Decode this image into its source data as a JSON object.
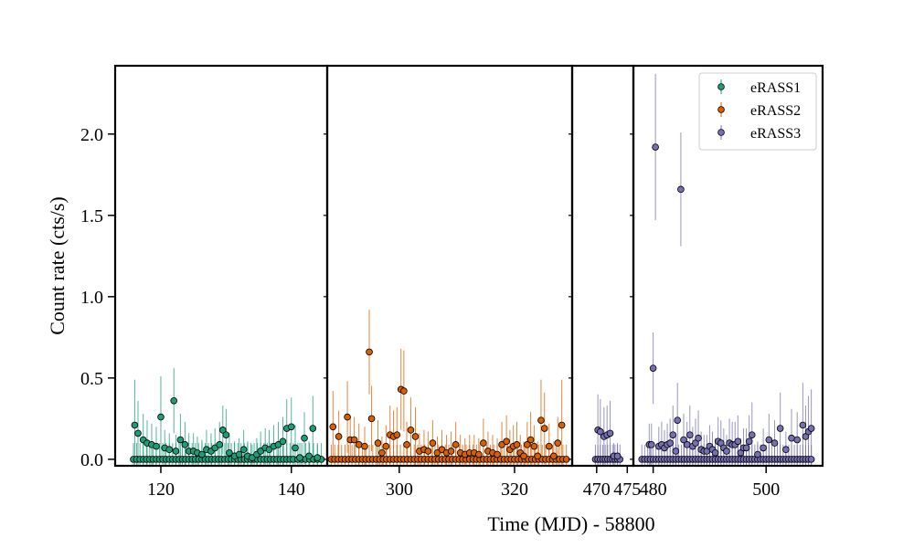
{
  "chart_data": {
    "type": "scatter",
    "xlabel": "Time (MJD) - 58800",
    "ylabel": "Count rate (cts/s)",
    "ylim": [
      -0.04,
      2.42
    ],
    "y_ticks": [
      0.0,
      0.5,
      1.0,
      1.5,
      2.0
    ],
    "y_tick_labels": [
      "0.0",
      "0.5",
      "1.0",
      "1.5",
      "2.0"
    ],
    "legend_position": "top-right",
    "panels": [
      {
        "xlim": [
          113.0,
          145.5
        ],
        "x_ticks": [
          120,
          140
        ],
        "x_tick_labels": [
          "120",
          "140"
        ]
      },
      {
        "xlim": [
          287.5,
          330.0
        ],
        "x_ticks": [
          300,
          320
        ],
        "x_tick_labels": [
          "300",
          "320"
        ]
      },
      {
        "xlim": [
          466.0,
          476.0
        ],
        "x_ticks": [
          470,
          475
        ],
        "x_tick_labels": [
          "470",
          "475"
        ]
      },
      {
        "xlim": [
          476.5,
          510.0
        ],
        "x_ticks": [
          480,
          500
        ],
        "x_tick_labels": [
          "480",
          "500"
        ]
      }
    ],
    "series": [
      {
        "name": "eRASS1",
        "color": "#1b9e77",
        "x": [
          116.0,
          116.5,
          117.3,
          117.9,
          118.6,
          119.3,
          120.0,
          120.6,
          121.3,
          122.0,
          122.3,
          123.0,
          123.7,
          124.3,
          125.0,
          125.6,
          126.3,
          127.0,
          127.7,
          128.3,
          129.0,
          129.5,
          130.0,
          130.5,
          131.3,
          132.0,
          132.7,
          133.3,
          134.0,
          134.7,
          135.3,
          136.0,
          136.6,
          137.3,
          138.0,
          138.7,
          139.3,
          140.0,
          140.6,
          141.3,
          142.0,
          142.7,
          143.3,
          144.0
        ],
        "y": [
          0.21,
          0.16,
          0.12,
          0.1,
          0.09,
          0.08,
          0.26,
          0.07,
          0.06,
          0.36,
          0.05,
          0.12,
          0.09,
          0.05,
          0.05,
          0.04,
          0.03,
          0.06,
          0.05,
          0.07,
          0.09,
          0.18,
          0.15,
          0.04,
          0.02,
          0.03,
          0.06,
          0.02,
          0.01,
          0.03,
          0.05,
          0.07,
          0.06,
          0.08,
          0.09,
          0.11,
          0.19,
          0.2,
          0.07,
          0.01,
          0.13,
          0.02,
          0.19,
          0.01
        ],
        "yerr": [
          0.28,
          0.2,
          0.16,
          0.14,
          0.13,
          0.12,
          0.25,
          0.11,
          0.1,
          0.2,
          0.1,
          0.16,
          0.14,
          0.11,
          0.11,
          0.1,
          0.09,
          0.12,
          0.11,
          0.12,
          0.14,
          0.15,
          0.16,
          0.12,
          0.09,
          0.1,
          0.12,
          0.09,
          0.08,
          0.1,
          0.12,
          0.12,
          0.12,
          0.13,
          0.14,
          0.15,
          0.18,
          0.18,
          0.14,
          0.09,
          0.16,
          0.09,
          0.2,
          0.08
        ],
        "zeros_x": [
          115.8,
          116.3,
          116.8,
          117.3,
          117.8,
          118.3,
          118.8,
          119.3,
          119.8,
          120.3,
          120.8,
          121.3,
          121.8,
          122.3,
          122.8,
          123.3,
          123.8,
          124.3,
          124.8,
          125.3,
          125.8,
          126.3,
          126.8,
          127.3,
          127.8,
          128.3,
          128.8,
          129.3,
          129.8,
          130.3,
          130.8,
          131.3,
          131.8,
          132.3,
          132.8,
          133.3,
          133.8,
          134.3,
          134.8,
          135.3,
          135.8,
          136.3,
          136.8,
          137.3,
          137.8,
          138.3,
          138.8,
          139.3,
          139.8,
          140.3,
          141.0,
          141.6,
          142.2,
          142.8,
          143.4,
          144.0,
          144.6
        ],
        "zeros_err": 0.1
      },
      {
        "name": "eRASS2",
        "color": "#d95f02",
        "x": [
          288.5,
          289.5,
          291.0,
          291.5,
          292.2,
          293.0,
          294.0,
          294.8,
          295.2,
          296.3,
          297.0,
          297.7,
          298.4,
          299.0,
          299.6,
          300.3,
          300.8,
          301.3,
          302.0,
          302.8,
          303.5,
          304.3,
          305.0,
          305.8,
          306.6,
          307.4,
          308.2,
          309.0,
          309.8,
          310.6,
          311.4,
          312.2,
          313.0,
          313.8,
          314.6,
          315.4,
          316.2,
          317.0,
          317.8,
          318.6,
          319.2,
          319.8,
          320.4,
          321.0,
          321.6,
          322.2,
          322.8,
          323.4,
          324.0,
          324.6,
          325.2,
          326.0,
          326.8,
          327.5,
          328.2
        ],
        "y": [
          0.2,
          0.14,
          0.26,
          0.12,
          0.12,
          0.09,
          0.08,
          0.66,
          0.25,
          0.1,
          0.04,
          0.08,
          0.15,
          0.14,
          0.15,
          0.43,
          0.42,
          0.09,
          0.18,
          0.14,
          0.05,
          0.06,
          0.05,
          0.1,
          0.04,
          0.06,
          0.04,
          0.05,
          0.09,
          0.04,
          0.03,
          0.04,
          0.04,
          0.03,
          0.1,
          0.05,
          0.04,
          0.03,
          0.09,
          0.11,
          0.06,
          0.08,
          0.09,
          0.04,
          0.02,
          0.09,
          0.12,
          0.08,
          0.02,
          0.24,
          0.19,
          0.08,
          0.02,
          0.1,
          0.21
        ],
        "yerr": [
          0.22,
          0.16,
          0.22,
          0.14,
          0.14,
          0.13,
          0.12,
          0.26,
          0.2,
          0.14,
          0.1,
          0.13,
          0.18,
          0.16,
          0.17,
          0.25,
          0.25,
          0.14,
          0.2,
          0.18,
          0.11,
          0.12,
          0.12,
          0.14,
          0.1,
          0.12,
          0.11,
          0.12,
          0.14,
          0.11,
          0.1,
          0.11,
          0.11,
          0.1,
          0.15,
          0.12,
          0.11,
          0.1,
          0.14,
          0.16,
          0.12,
          0.13,
          0.14,
          0.11,
          0.09,
          0.14,
          0.17,
          0.13,
          0.09,
          0.25,
          0.22,
          0.14,
          0.09,
          0.16,
          0.28
        ],
        "zeros_x": [
          288.2,
          288.8,
          289.4,
          290.0,
          290.6,
          291.2,
          291.8,
          292.4,
          293.0,
          293.6,
          294.2,
          294.8,
          295.4,
          296.0,
          296.6,
          297.2,
          297.8,
          298.4,
          299.0,
          299.6,
          300.2,
          300.8,
          301.4,
          302.0,
          302.6,
          303.2,
          303.8,
          304.4,
          305.0,
          305.6,
          306.2,
          306.8,
          307.4,
          308.0,
          308.6,
          309.2,
          309.8,
          310.4,
          311.0,
          311.6,
          312.2,
          312.8,
          313.4,
          314.0,
          314.6,
          315.2,
          315.8,
          316.4,
          317.0,
          317.6,
          318.2,
          318.8,
          319.4,
          320.0,
          320.6,
          321.2,
          321.8,
          322.4,
          323.0,
          323.6,
          324.2,
          324.8,
          325.4,
          326.0,
          326.6,
          327.2,
          327.8,
          328.4,
          329.0
        ],
        "zeros_err": 0.09
      },
      {
        "name": "eRASS3",
        "color": "#7570b3",
        "x": [
          470.2,
          470.6,
          471.2,
          471.7,
          472.2,
          472.8,
          473.4,
          479.3,
          479.7,
          480.0,
          480.4,
          481.0,
          481.5,
          482.0,
          482.5,
          483.0,
          483.5,
          484.0,
          484.3,
          484.9,
          485.4,
          486.0,
          486.5,
          487.0,
          487.5,
          488.0,
          488.5,
          489.0,
          489.5,
          490.0,
          490.5,
          491.0,
          491.5,
          492.0,
          492.5,
          493.0,
          493.5,
          494.0,
          494.5,
          495.0,
          495.5,
          496.0,
          496.5,
          497.0,
          497.5,
          498.5,
          499.5,
          500.5,
          501.5,
          502.5,
          503.5,
          504.5,
          505.5,
          506.5,
          507.0,
          507.5,
          508.0
        ],
        "y": [
          0.18,
          0.17,
          0.14,
          0.15,
          0.16,
          0.02,
          0.02,
          0.09,
          0.09,
          0.56,
          1.92,
          0.08,
          0.09,
          0.07,
          0.09,
          0.1,
          0.15,
          0.05,
          0.24,
          1.66,
          0.12,
          0.09,
          0.15,
          0.08,
          0.1,
          0.13,
          0.06,
          0.05,
          0.05,
          0.08,
          0.06,
          0.04,
          0.11,
          0.1,
          0.07,
          0.05,
          0.1,
          0.09,
          0.09,
          0.11,
          0.04,
          0.07,
          0.07,
          0.11,
          0.15,
          0.03,
          0.07,
          0.12,
          0.1,
          0.19,
          0.06,
          0.13,
          0.12,
          0.21,
          0.14,
          0.17,
          0.19
        ],
        "yerr": [
          0.22,
          0.2,
          0.18,
          0.18,
          0.2,
          0.08,
          0.08,
          0.13,
          0.13,
          0.22,
          0.45,
          0.12,
          0.14,
          0.11,
          0.13,
          0.15,
          0.18,
          0.1,
          0.23,
          0.35,
          0.16,
          0.14,
          0.18,
          0.12,
          0.15,
          0.17,
          0.11,
          0.1,
          0.1,
          0.13,
          0.11,
          0.09,
          0.15,
          0.14,
          0.12,
          0.1,
          0.15,
          0.14,
          0.14,
          0.16,
          0.09,
          0.12,
          0.12,
          0.16,
          0.2,
          0.08,
          0.12,
          0.16,
          0.14,
          0.22,
          0.11,
          0.18,
          0.17,
          0.26,
          0.19,
          0.22,
          0.24
        ],
        "zeros_x": [
          469.8,
          470.2,
          470.6,
          471.0,
          471.4,
          471.8,
          472.2,
          472.6,
          473.0,
          473.4,
          473.8,
          478.0,
          478.5,
          479.0,
          479.5,
          480.0,
          480.5,
          481.0,
          481.5,
          482.0,
          482.5,
          483.0,
          483.5,
          484.0,
          484.5,
          485.0,
          485.5,
          486.0,
          486.5,
          487.0,
          487.5,
          488.0,
          488.5,
          489.0,
          489.5,
          490.0,
          490.5,
          491.0,
          491.5,
          492.0,
          492.5,
          493.0,
          493.5,
          494.0,
          494.5,
          495.0,
          495.5,
          496.0,
          496.5,
          497.0,
          497.5,
          498.0,
          498.5,
          499.0,
          499.5,
          500.0,
          500.5,
          501.0,
          501.5,
          502.0,
          502.5,
          503.0,
          503.5,
          504.0,
          504.5,
          505.0,
          505.5,
          506.0,
          506.5,
          507.0,
          507.5,
          508.0
        ],
        "zeros_err": 0.09
      }
    ]
  }
}
